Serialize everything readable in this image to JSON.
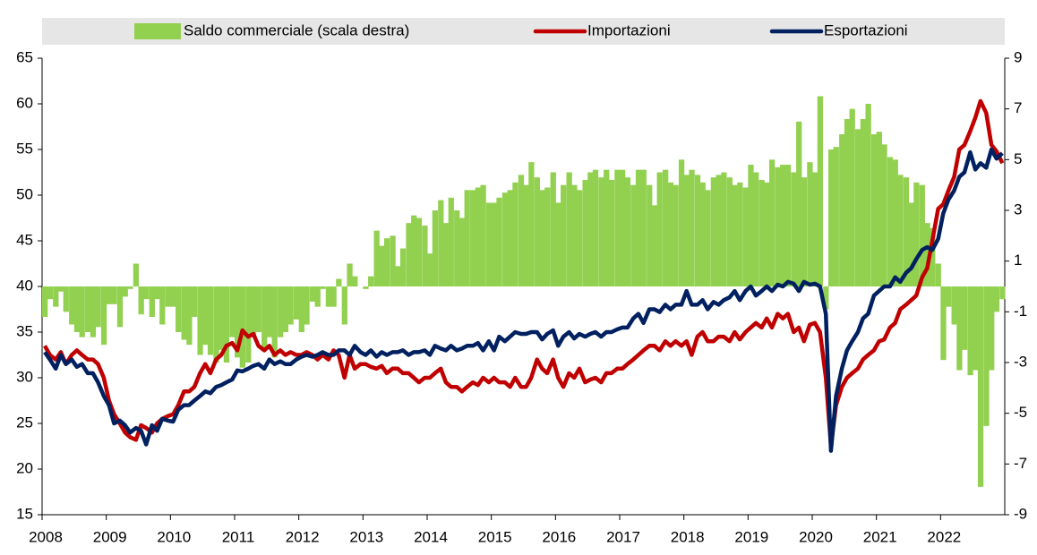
{
  "chart_data": {
    "type": "line_bar",
    "legend_position": "top",
    "xlim": [
      2008,
      2023
    ],
    "xticks": [
      2008,
      2009,
      2010,
      2011,
      2012,
      2013,
      2014,
      2015,
      2016,
      2017,
      2018,
      2019,
      2020,
      2021,
      2022
    ],
    "ylim": [
      15,
      65
    ],
    "yticks": [
      15,
      20,
      25,
      30,
      35,
      40,
      45,
      50,
      55,
      60,
      65
    ],
    "y2lim": [
      -9,
      9
    ],
    "y2ticks": [
      -9,
      -7,
      -5,
      -3,
      -1,
      1,
      3,
      5,
      7,
      9
    ],
    "x": [
      2008.0,
      2008.08,
      2008.17,
      2008.25,
      2008.33,
      2008.42,
      2008.5,
      2008.58,
      2008.67,
      2008.75,
      2008.83,
      2008.92,
      2009.0,
      2009.08,
      2009.17,
      2009.25,
      2009.33,
      2009.42,
      2009.5,
      2009.58,
      2009.67,
      2009.75,
      2009.83,
      2009.92,
      2010.0,
      2010.08,
      2010.17,
      2010.25,
      2010.33,
      2010.42,
      2010.5,
      2010.58,
      2010.67,
      2010.75,
      2010.83,
      2010.92,
      2011.0,
      2011.08,
      2011.17,
      2011.25,
      2011.33,
      2011.42,
      2011.5,
      2011.58,
      2011.67,
      2011.75,
      2011.83,
      2011.92,
      2012.0,
      2012.08,
      2012.17,
      2012.25,
      2012.33,
      2012.42,
      2012.5,
      2012.58,
      2012.67,
      2012.75,
      2012.83,
      2012.92,
      2013.0,
      2013.08,
      2013.17,
      2013.25,
      2013.33,
      2013.42,
      2013.5,
      2013.58,
      2013.67,
      2013.75,
      2013.83,
      2013.92,
      2014.0,
      2014.08,
      2014.17,
      2014.25,
      2014.33,
      2014.42,
      2014.5,
      2014.58,
      2014.67,
      2014.75,
      2014.83,
      2014.92,
      2015.0,
      2015.08,
      2015.17,
      2015.25,
      2015.33,
      2015.42,
      2015.5,
      2015.58,
      2015.67,
      2015.75,
      2015.83,
      2015.92,
      2016.0,
      2016.08,
      2016.17,
      2016.25,
      2016.33,
      2016.42,
      2016.5,
      2016.58,
      2016.67,
      2016.75,
      2016.83,
      2016.92,
      2017.0,
      2017.08,
      2017.17,
      2017.25,
      2017.33,
      2017.42,
      2017.5,
      2017.58,
      2017.67,
      2017.75,
      2017.83,
      2017.92,
      2018.0,
      2018.08,
      2018.17,
      2018.25,
      2018.33,
      2018.42,
      2018.5,
      2018.58,
      2018.67,
      2018.75,
      2018.83,
      2018.92,
      2019.0,
      2019.08,
      2019.17,
      2019.25,
      2019.33,
      2019.42,
      2019.5,
      2019.58,
      2019.67,
      2019.75,
      2019.83,
      2019.92,
      2020.0,
      2020.08,
      2020.17,
      2020.25,
      2020.33,
      2020.42,
      2020.5,
      2020.58,
      2020.67,
      2020.75,
      2020.83,
      2020.92,
      2021.0,
      2021.08,
      2021.17,
      2021.25,
      2021.33,
      2021.42,
      2021.5,
      2021.58,
      2021.67,
      2021.75,
      2021.83,
      2021.92,
      2022.0,
      2022.08,
      2022.17,
      2022.25,
      2022.33,
      2022.42,
      2022.5,
      2022.58,
      2022.67,
      2022.75,
      2022.83,
      2022.92
    ],
    "series": [
      {
        "name": "Saldo commerciale (scala destra)",
        "kind": "bar",
        "axis": "y2",
        "color": "#92d050",
        "values": [
          -1.2,
          -0.5,
          -0.8,
          -0.2,
          -1,
          -1.5,
          -1.8,
          -2,
          -1.8,
          -2,
          -1.6,
          -2.3,
          -0.7,
          -0.7,
          -1.6,
          -0.4,
          -0.1,
          0.9,
          -1.1,
          -0.5,
          -1.2,
          -0.5,
          -1.5,
          -0.8,
          -0.8,
          -1.8,
          -2.1,
          -2.3,
          -1.2,
          -2.7,
          -2.3,
          -2.7,
          -3,
          -2.5,
          -3,
          -2,
          -2.8,
          -3.2,
          -3,
          -2,
          -1.8,
          -2.5,
          -2,
          -2.8,
          -2,
          -1.8,
          -1.5,
          -1.3,
          -1.8,
          -1.5,
          -0.6,
          -0.8,
          -0.1,
          -0.8,
          -0.8,
          0.3,
          -1.5,
          0.9,
          0.4,
          0,
          -0.1,
          0.4,
          2.2,
          1.6,
          1.9,
          2,
          0.8,
          1.5,
          2.5,
          2.8,
          2.7,
          2.4,
          1.3,
          3,
          3.4,
          2.5,
          3.5,
          3,
          2.7,
          3.8,
          3.8,
          3.9,
          4,
          3.3,
          3.3,
          3.5,
          3.7,
          3.8,
          4.1,
          4.4,
          4,
          4.9,
          4.3,
          3.8,
          3.9,
          4.5,
          3.3,
          4,
          4.5,
          4,
          3.8,
          4.2,
          4.5,
          4.6,
          4.3,
          4.6,
          4.2,
          4.6,
          4.6,
          4.3,
          4,
          4.6,
          4.6,
          4,
          3.2,
          4.5,
          4.6,
          4.1,
          4,
          5,
          4.4,
          4.6,
          4.4,
          4.1,
          3.8,
          4.3,
          4.4,
          4.5,
          4.3,
          4,
          4.1,
          3.9,
          4.8,
          4.5,
          4.2,
          4.1,
          5,
          4.7,
          4.8,
          4.8,
          4.5,
          6.5,
          4.3,
          4.9,
          4.5,
          7.5,
          -0.9,
          5.4,
          5.5,
          6,
          6.6,
          7,
          6.2,
          6.6,
          7.2,
          6,
          6.1,
          5.6,
          5.1,
          5,
          4.4,
          4.3,
          3.3,
          4.1,
          4,
          2.5,
          2.3,
          0.9,
          -2.9,
          -0.8,
          -1.5,
          -3.3,
          -2.5,
          -3.5,
          -3.3,
          -7.9,
          -5.5,
          -3.3,
          -1,
          -0.5
        ]
      },
      {
        "name": "Importazioni",
        "kind": "line",
        "color": "#c00000",
        "values": [
          33.5,
          32.5,
          32,
          32.8,
          31.5,
          32.5,
          33,
          32.5,
          32,
          32,
          31.5,
          30,
          27.5,
          26,
          25,
          24,
          23.5,
          23.2,
          24.8,
          24.5,
          24,
          25,
          25.5,
          25.8,
          26,
          27,
          28.5,
          28.5,
          29,
          30.5,
          31.5,
          30.5,
          32,
          32.5,
          33.5,
          33.8,
          33,
          35.2,
          34.5,
          34.8,
          33.5,
          33,
          33.5,
          32.5,
          33,
          32.5,
          32.8,
          32.5,
          32.5,
          32.8,
          32.5,
          32,
          32.5,
          32,
          33,
          32.5,
          30,
          32.5,
          31,
          31.5,
          31.5,
          31.2,
          31,
          31.3,
          30.5,
          31,
          31,
          30.5,
          30.5,
          30,
          29.5,
          30,
          30,
          30.5,
          31,
          29.5,
          29,
          29,
          28.5,
          29,
          29.5,
          29.2,
          30,
          29.5,
          30,
          29.5,
          29.5,
          29,
          30,
          29,
          29,
          30,
          32,
          31,
          30.5,
          32,
          30,
          29,
          30.5,
          30,
          31,
          29.5,
          29.8,
          30,
          29.5,
          30.5,
          30.5,
          31,
          31,
          31.5,
          32,
          32.5,
          33,
          33.5,
          33.5,
          33,
          34,
          33.5,
          34,
          33.5,
          34,
          32.5,
          34.5,
          35,
          34,
          34,
          34.5,
          34.5,
          34,
          35,
          34.2,
          35,
          35.5,
          36,
          35.5,
          36.5,
          35.5,
          37,
          36.5,
          37,
          35,
          35.5,
          34,
          35.8,
          36,
          35,
          30,
          22.5,
          27,
          29,
          30,
          30.5,
          31,
          32,
          32.5,
          33,
          34,
          34.2,
          35.5,
          36,
          37.5,
          38,
          38.5,
          39,
          41,
          42,
          45,
          48.5,
          49,
          50.5,
          52,
          55,
          55.5,
          57,
          58.5,
          60.3,
          59,
          55.5,
          54.8,
          53.5
        ]
      },
      {
        "name": "Esportazioni",
        "kind": "line",
        "color": "#002060",
        "values": [
          32.8,
          32,
          31,
          32.5,
          31.5,
          32,
          31.2,
          31.5,
          30.5,
          30.5,
          29.5,
          28,
          27,
          25,
          25.3,
          24.8,
          24,
          24.5,
          24.2,
          22.7,
          24.8,
          24.2,
          25.5,
          25.3,
          25.2,
          26.5,
          27,
          27,
          27.5,
          28,
          28.5,
          28.3,
          29,
          29.2,
          29.5,
          29.8,
          30.8,
          30.7,
          31,
          31.3,
          31.5,
          31,
          32,
          31.5,
          31.8,
          31.5,
          31.5,
          32,
          32.3,
          32.5,
          32.3,
          32.5,
          32.8,
          32.5,
          32.5,
          33,
          33,
          32.5,
          33.5,
          32.8,
          32.5,
          33,
          32.3,
          32.8,
          32.5,
          32.8,
          32.8,
          33,
          32.5,
          32.8,
          32.8,
          33,
          32.5,
          33.5,
          33.2,
          33,
          33.5,
          33,
          33.2,
          33.5,
          33.5,
          33.8,
          33,
          34,
          33,
          34.5,
          34,
          34.5,
          35,
          34.8,
          34.8,
          35,
          35,
          34.2,
          34.8,
          35.2,
          33.5,
          34.5,
          35,
          34.3,
          34.8,
          34.5,
          34.8,
          35,
          34.5,
          35,
          35,
          35.3,
          35.5,
          35.5,
          36.5,
          37,
          36,
          37.5,
          37.5,
          37.2,
          38,
          37.5,
          38,
          38,
          39.5,
          38,
          38,
          38.5,
          37.5,
          38.3,
          38,
          38.5,
          38.8,
          39.5,
          38.5,
          39.5,
          40,
          39,
          39.5,
          40,
          39.5,
          40.2,
          40,
          40.5,
          40.3,
          39.5,
          40.5,
          40.2,
          40.3,
          40,
          37,
          22,
          28,
          31,
          33,
          34,
          35,
          36.5,
          37,
          39,
          39.5,
          40,
          40,
          41,
          40.5,
          41.5,
          42,
          43,
          44,
          44.3,
          44,
          45.2,
          48,
          49.5,
          50.5,
          52,
          52.5,
          54.7,
          52.8,
          53.5,
          53,
          55,
          54,
          54.6
        ]
      }
    ]
  }
}
